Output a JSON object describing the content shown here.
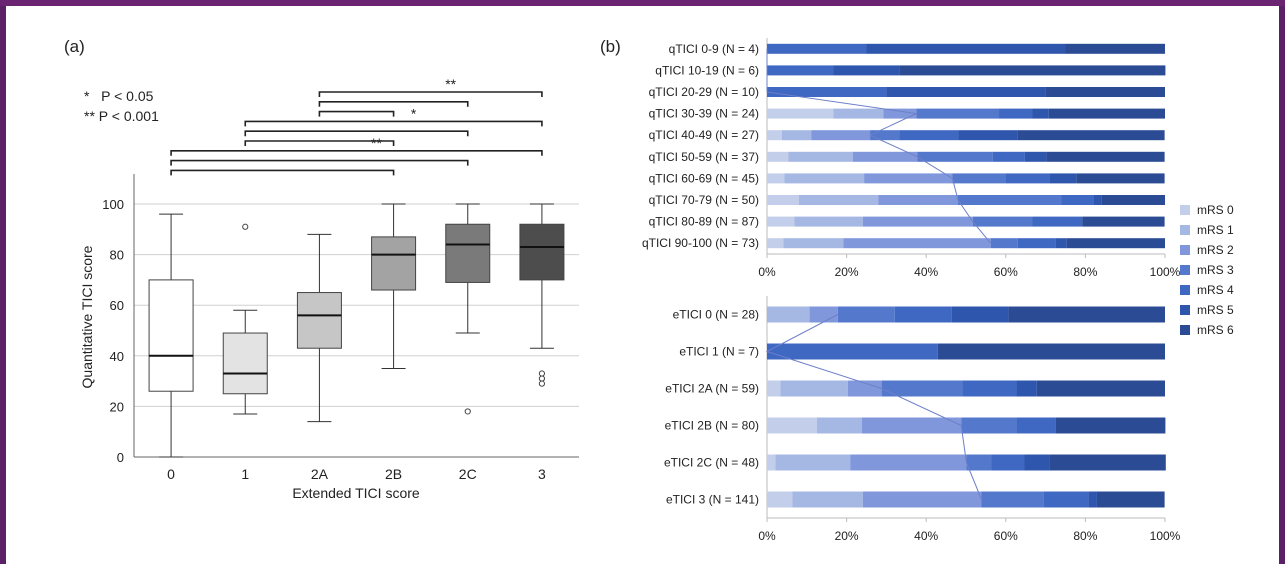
{
  "colors": {
    "frame": "#5b2166",
    "mrs": [
      "#c3cfea",
      "#a5b7e3",
      "#8098db",
      "#5378cc",
      "#3f68c2",
      "#2e56ad",
      "#2b4c94"
    ],
    "box_fills": [
      "#ffffff",
      "#e3e3e3",
      "#c6c6c6",
      "#a3a3a3",
      "#7a7a7a",
      "#4d4d4d"
    ]
  },
  "panel_a": {
    "label": "(a)",
    "legend": [
      "*   P < 0.05",
      "** P < 0.001"
    ],
    "chart_data": {
      "type": "box",
      "xlabel": "Extended TICI score",
      "ylabel": "Quantitative TICI score",
      "ylim": [
        0,
        100
      ],
      "yticks": [
        0,
        20,
        40,
        60,
        80,
        100
      ],
      "grid": true,
      "categories": [
        "0",
        "1",
        "2A",
        "2B",
        "2C",
        "3"
      ],
      "boxes": [
        {
          "min": 0,
          "q1": 26,
          "median": 40,
          "q3": 70,
          "max": 96,
          "outliers": []
        },
        {
          "min": 17,
          "q1": 25,
          "median": 33,
          "q3": 49,
          "max": 58,
          "outliers": [
            91
          ]
        },
        {
          "min": 14,
          "q1": 43,
          "median": 56,
          "q3": 65,
          "max": 88,
          "outliers": []
        },
        {
          "min": 35,
          "q1": 66,
          "median": 80,
          "q3": 87,
          "max": 100,
          "outliers": []
        },
        {
          "min": 49,
          "q1": 69,
          "median": 84,
          "q3": 92,
          "max": 100,
          "outliers": [
            18
          ]
        },
        {
          "min": 43,
          "q1": 70,
          "median": 83,
          "q3": 92,
          "max": 100,
          "outliers": [
            33,
            31,
            29
          ]
        }
      ],
      "significance": [
        {
          "from": "2A",
          "to": "3",
          "label": "**"
        },
        {
          "from": "2A",
          "to": "2C",
          "label": ""
        },
        {
          "from": "2A",
          "to": "2B",
          "label": ""
        },
        {
          "from": "1",
          "to": "3",
          "label": "*"
        },
        {
          "from": "1",
          "to": "2C",
          "label": ""
        },
        {
          "from": "1",
          "to": "2B",
          "label": ""
        },
        {
          "from": "0",
          "to": "3",
          "label": "**"
        },
        {
          "from": "0",
          "to": "2C",
          "label": ""
        },
        {
          "from": "0",
          "to": "2B",
          "label": ""
        }
      ]
    }
  },
  "panel_b": {
    "label": "(b)",
    "legend": [
      "mRS 0",
      "mRS 1",
      "mRS 2",
      "mRS 3",
      "mRS 4",
      "mRS 5",
      "mRS 6"
    ],
    "xticks": [
      "0%",
      "20%",
      "40%",
      "60%",
      "80%",
      "100%"
    ],
    "chart_data": [
      {
        "type": "stacked-bar-100",
        "series_names": [
          "mRS 0",
          "mRS 1",
          "mRS 2",
          "mRS 3",
          "mRS 4",
          "mRS 5",
          "mRS 6"
        ],
        "categories": [
          "qTICI 0-9 (N = 4)",
          "qTICI 10-19 (N = 6)",
          "qTICI 20-29 (N = 10)",
          "qTICI 30-39 (N = 24)",
          "qTICI 40-49 (N = 27)",
          "qTICI 50-59 (N = 37)",
          "qTICI 60-69 (N = 45)",
          "qTICI 70-79 (N = 50)",
          "qTICI 80-89 (N = 87)",
          "qTICI 90-100 (N = 73)"
        ],
        "values": [
          [
            0,
            0,
            0,
            0,
            25,
            50,
            25
          ],
          [
            0,
            0,
            0,
            0,
            16.7,
            16.7,
            66.7
          ],
          [
            0,
            0,
            0,
            0,
            30,
            40,
            30
          ],
          [
            16.7,
            12.5,
            8.3,
            20.8,
            8.3,
            4.2,
            29.2
          ],
          [
            3.7,
            7.4,
            14.8,
            7.4,
            14.8,
            14.8,
            37
          ],
          [
            5.4,
            16.2,
            16.2,
            18.9,
            8.1,
            5.4,
            29.7
          ],
          [
            4.4,
            20,
            22.2,
            13.3,
            11.1,
            6.7,
            22.2
          ],
          [
            8,
            20,
            20,
            26,
            8,
            2,
            16
          ],
          [
            6.9,
            17.2,
            27.6,
            14.9,
            12.6,
            0,
            20.7
          ],
          [
            4.1,
            15.1,
            37,
            6.8,
            9.6,
            2.7,
            24.7
          ]
        ],
        "xlim": [
          0,
          100
        ]
      },
      {
        "type": "stacked-bar-100",
        "series_names": [
          "mRS 0",
          "mRS 1",
          "mRS 2",
          "mRS 3",
          "mRS 4",
          "mRS 5",
          "mRS 6"
        ],
        "categories": [
          "eTICI 0 (N = 28)",
          "eTICI 1 (N = 7)",
          "eTICI 2A (N = 59)",
          "eTICI 2B (N = 80)",
          "eTICI 2C (N = 48)",
          "eTICI 3 (N = 141)"
        ],
        "values": [
          [
            0,
            10.7,
            7.1,
            14.3,
            14.3,
            14.3,
            39.3
          ],
          [
            0,
            0,
            0,
            0,
            42.9,
            0,
            57.1
          ],
          [
            3.4,
            16.9,
            8.5,
            20.3,
            13.6,
            5.1,
            32.2
          ],
          [
            12.5,
            11.3,
            25,
            13.8,
            10,
            0,
            27.5
          ],
          [
            2.1,
            18.8,
            29.2,
            6.3,
            8.3,
            6.3,
            29.2
          ],
          [
            6.4,
            17.7,
            29.8,
            15.6,
            11.3,
            2.1,
            17
          ]
        ],
        "xlim": [
          0,
          100
        ]
      }
    ]
  }
}
